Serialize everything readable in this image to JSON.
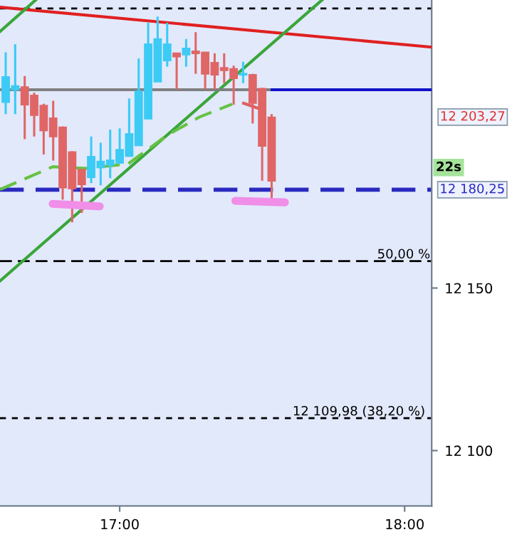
{
  "chart_data": {
    "type": "candlestick",
    "x": [
      16.6,
      16.6333,
      16.6667,
      16.7,
      16.7333,
      16.7667,
      16.8,
      16.8333,
      16.8667,
      16.9,
      16.9333,
      16.9667,
      17.0,
      17.0333,
      17.0667,
      17.1,
      17.1333,
      17.1667,
      17.2,
      17.2333,
      17.2667,
      17.3,
      17.3333,
      17.3667,
      17.4,
      17.4333,
      17.4667,
      17.5,
      17.5333
    ],
    "ohlc": [
      [
        12207.2,
        12222.5,
        12203.5,
        12214.9
      ],
      [
        12211.0,
        12225.0,
        12203.5,
        12212.1
      ],
      [
        12211.8,
        12215.2,
        12195.8,
        12206.4
      ],
      [
        12209.2,
        12210.1,
        12196.6,
        12203.2
      ],
      [
        12206.1,
        12206.7,
        12191.1,
        12198.5
      ],
      [
        12202.2,
        12207.6,
        12189.2,
        12196.6
      ],
      [
        12199.4,
        12199.7,
        12177.2,
        12180.9
      ],
      [
        12191.8,
        12192.1,
        12170.2,
        12180.6
      ],
      [
        12186.4,
        12186.7,
        12173.1,
        12181.9
      ],
      [
        12184.1,
        12196.6,
        12182.3,
        12190.4
      ],
      [
        12187.1,
        12194.7,
        12181.6,
        12188.9
      ],
      [
        12187.9,
        12198.7,
        12183.8,
        12189.3
      ],
      [
        12188.5,
        12199.1,
        12188.2,
        12192.5
      ],
      [
        12190.6,
        12208.3,
        12190.4,
        12197.4
      ],
      [
        12193.9,
        12220.6,
        12193.9,
        12210.5
      ],
      [
        12202.1,
        12231.6,
        12202.1,
        12225.0
      ],
      [
        12213.5,
        12233.5,
        12213.5,
        12226.6
      ],
      [
        12220.0,
        12231.6,
        12218.1,
        12225.0
      ],
      [
        12222.2,
        12222.2,
        12211.1,
        12221.2
      ],
      [
        12221.8,
        12226.6,
        12218.1,
        12223.7
      ],
      [
        12222.8,
        12228.7,
        12215.9,
        12222.2
      ],
      [
        12222.5,
        12222.5,
        12211.1,
        12215.9
      ],
      [
        12219.3,
        12222.2,
        12211.1,
        12215.6
      ],
      [
        12217.7,
        12222.2,
        12213.0,
        12217.0
      ],
      [
        12217.4,
        12218.4,
        12206.4,
        12214.5
      ],
      [
        12215.6,
        12219.6,
        12213.0,
        12215.9
      ],
      [
        12215.6,
        12215.9,
        12200.6,
        12206.9
      ],
      [
        12211.3,
        12211.6,
        12183.0,
        12193.7
      ],
      [
        12202.5,
        12203.5,
        12177.2,
        12183.0
      ]
    ],
    "colors": [
      "#3ccbf4",
      "#3ccbf4",
      "#e06666",
      "#e06666",
      "#e06666",
      "#e06666",
      "#e06666",
      "#e06666",
      "#e06666",
      "#3ccbf4",
      "#3ccbf4",
      "#3ccbf4",
      "#3ccbf4",
      "#3ccbf4",
      "#3ccbf4",
      "#3ccbf4",
      "#3ccbf4",
      "#3ccbf4",
      "#e06666",
      "#3ccbf4",
      "#e06666",
      "#e06666",
      "#e06666",
      "#e06666",
      "#e06666",
      "#3ccbf4",
      "#e06666",
      "#e06666",
      "#e06666"
    ],
    "series": [
      {
        "type": "line",
        "color": "#e02020",
        "line_style": "solid",
        "x": [
          16.58,
          18.095
        ],
        "values": [
          12236.4,
          12224.1
        ]
      },
      {
        "type": "line",
        "color": "#3aa63a",
        "line_style": "solid",
        "x": [
          16.58,
          17.71
        ],
        "values": [
          12152.2,
          12238.6
        ]
      },
      {
        "type": "line",
        "color": "#3aa63a",
        "line_style": "solid",
        "x": [
          16.58,
          16.705
        ],
        "values": [
          12228.9,
          12238.6
        ]
      },
      {
        "type": "line",
        "color": "#808080",
        "line_style": "solid",
        "x": [
          16.58,
          17.535
        ],
        "values": [
          12211.0,
          12211.0
        ]
      },
      {
        "type": "line",
        "color": "#1010c8",
        "line_style": "solid",
        "x": [
          17.535,
          18.095
        ],
        "values": [
          12211.0,
          12211.0
        ]
      },
      {
        "type": "line",
        "color": "#66c244",
        "line_style": "dashed",
        "x": [
          16.58,
          16.765,
          16.88,
          17.03,
          17.165,
          17.28,
          17.395
        ],
        "values": [
          12180.3,
          12187.3,
          12186.8,
          12188.2,
          12196.9,
          12202.6,
          12206.6
        ]
      },
      {
        "type": "line",
        "color": "#e06060",
        "line_style": "dashed",
        "x": [
          17.43,
          17.515
        ],
        "values": [
          12207.0,
          12204.4
        ]
      }
    ],
    "ref_lines": [
      {
        "axis": "y",
        "value": 12236.0,
        "color": "#000000",
        "line_style": "dotted"
      },
      {
        "axis": "y",
        "value": 12158.3,
        "color": "#000000",
        "line_style": "dashed"
      },
      {
        "axis": "y",
        "value": 12109.98,
        "label": "12 109,98 (38,20 %)",
        "color": "#000000",
        "line_style": "dotted"
      },
      {
        "axis": "y",
        "value": 12180.25,
        "label": "12 180,25",
        "color": "#2a2ac0",
        "line_style": "dashed"
      }
    ],
    "annotations": [
      "22s",
      {
        "text": "50,00 %",
        "x": 18.09,
        "y": 12158.3
      },
      "12 203,27"
    ],
    "xlim": [
      16.58,
      18.095
    ],
    "ylim": [
      12083,
      12238.6
    ],
    "xticks": [
      {
        "value": 17,
        "label": "17:00"
      },
      {
        "value": 18,
        "label": "18:00"
      }
    ],
    "yticks": [
      {
        "value": 12150,
        "label": "12 150"
      },
      {
        "value": 12100,
        "label": "12 100"
      }
    ],
    "grid": false,
    "legend": false
  }
}
